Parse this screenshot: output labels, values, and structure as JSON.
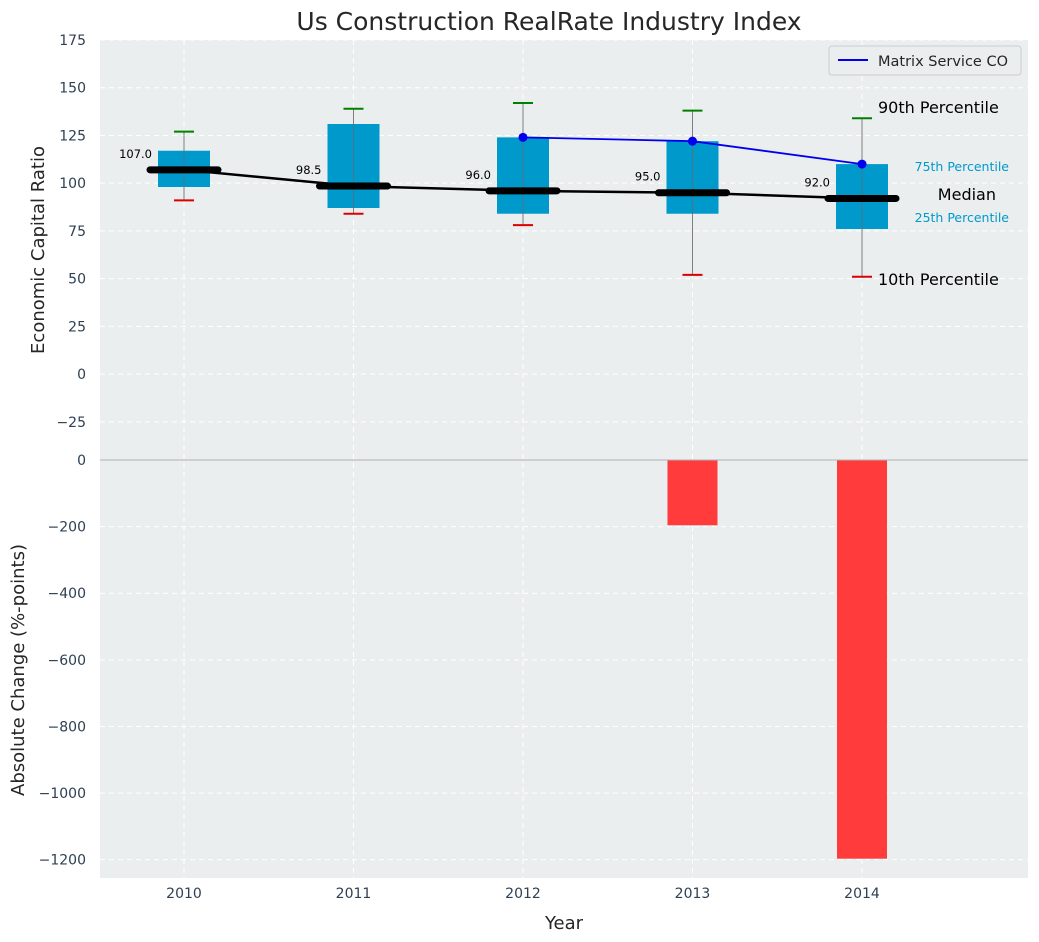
{
  "chart_data": {
    "type": "box",
    "title": "Us Construction RealRate Industry Index",
    "xlabel": "Year",
    "categories": [
      "2010",
      "2011",
      "2012",
      "2013",
      "2014"
    ],
    "top_panel": {
      "ylabel": "Economic Capital Ratio",
      "ylim": [
        -45,
        175
      ],
      "yticks": [
        -25,
        0,
        25,
        50,
        75,
        100,
        125,
        150,
        175
      ],
      "ytick_labels": [
        "−25",
        "0",
        "25",
        "50",
        "75",
        "100",
        "125",
        "150",
        "175"
      ],
      "p10": [
        91,
        84,
        78,
        52,
        51
      ],
      "p25": [
        98,
        87,
        84,
        84,
        76
      ],
      "median": [
        107.0,
        98.5,
        96.0,
        95.0,
        92.0
      ],
      "median_labels": [
        "107.0",
        "98.5",
        "96.0",
        "95.0",
        "92.0"
      ],
      "p75": [
        117,
        131,
        124,
        122,
        110
      ],
      "p90": [
        127,
        139,
        142,
        138,
        134
      ],
      "series": [
        {
          "name": "Matrix Service CO",
          "color": "#0000ee",
          "x": [
            "2012",
            "2013",
            "2014"
          ],
          "values": [
            124,
            122,
            110
          ]
        }
      ],
      "legend": "top-right",
      "annotations": {
        "p90": "90th Percentile",
        "p75": "75th Percentile",
        "median": "Median",
        "p25": "25th Percentile",
        "p10": "10th Percentile"
      }
    },
    "bottom_panel": {
      "type": "bar",
      "ylabel": "Absolute Change (%-points)",
      "ylim": [
        -1255,
        0
      ],
      "yticks": [
        -1200,
        -1000,
        -800,
        -600,
        -400,
        -200,
        0
      ],
      "ytick_labels": [
        "−1200",
        "−1000",
        "−800",
        "−600",
        "−400",
        "−200",
        "0"
      ],
      "values": [
        0,
        0,
        0,
        -196,
        -1197
      ],
      "color": "#ff3b3b"
    },
    "grid": true,
    "colors": {
      "box": "#0099cc",
      "median_line": "#000000",
      "p90_cap": "#008000",
      "p10_cap": "#dd0000",
      "background": "#eaeeef"
    }
  }
}
